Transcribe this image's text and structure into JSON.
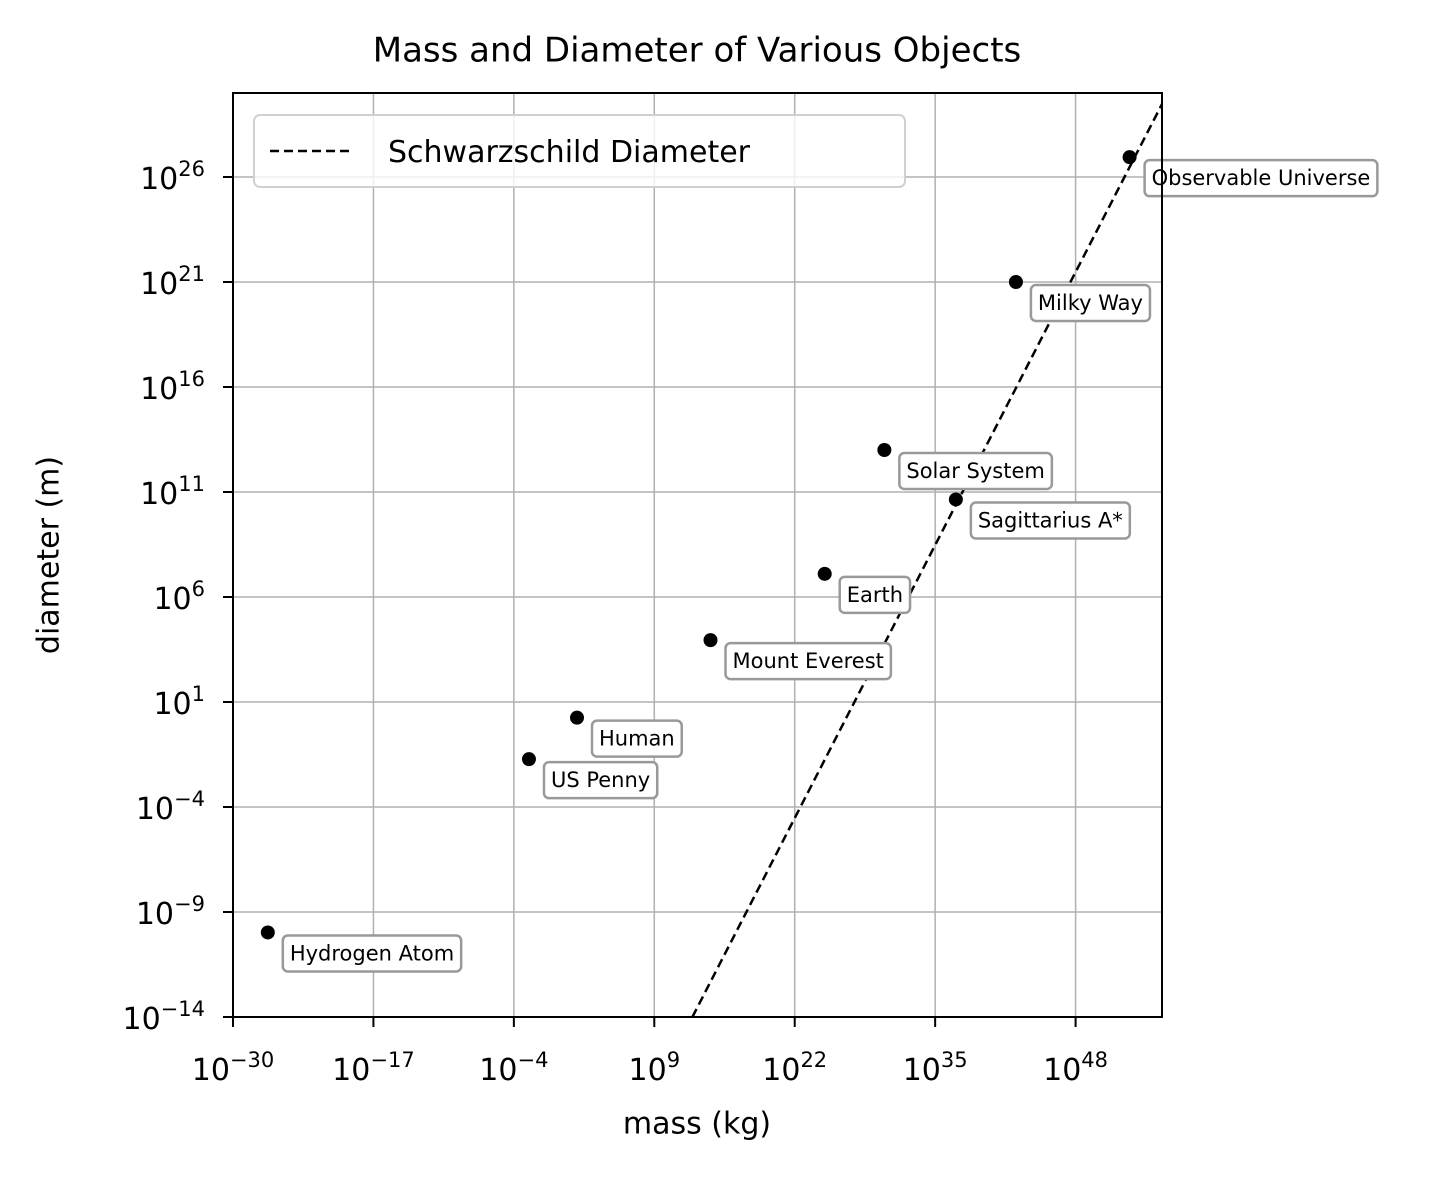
{
  "chart_data": {
    "type": "scatter",
    "title": "Mass and Diameter of Various Objects",
    "x_label": "mass (kg)",
    "y_label": "diameter (m)",
    "log_x": true,
    "log_y": true,
    "grid": true,
    "legend_position": "upper left",
    "xlim": [
      1e-30,
      1e+56
    ],
    "ylim": [
      1e-14,
      1e+30
    ],
    "xticks": [
      {
        "value": 1e-30,
        "base": "10",
        "exponent": "−30"
      },
      {
        "value": 1e-17,
        "base": "10",
        "exponent": "−17"
      },
      {
        "value": 0.0001,
        "base": "10",
        "exponent": "−4"
      },
      {
        "value": 1000000000.0,
        "base": "10",
        "exponent": "9"
      },
      {
        "value": 1e+22,
        "base": "10",
        "exponent": "22"
      },
      {
        "value": 1e+35,
        "base": "10",
        "exponent": "35"
      },
      {
        "value": 1e+48,
        "base": "10",
        "exponent": "48"
      }
    ],
    "yticks": [
      {
        "value": 1e-14,
        "base": "10",
        "exponent": "−14"
      },
      {
        "value": 1e-09,
        "base": "10",
        "exponent": "−9"
      },
      {
        "value": 0.0001,
        "base": "10",
        "exponent": "−4"
      },
      {
        "value": 10,
        "base": "10",
        "exponent": "1"
      },
      {
        "value": 1000000.0,
        "base": "10",
        "exponent": "6"
      },
      {
        "value": 100000000000.0,
        "base": "10",
        "exponent": "11"
      },
      {
        "value": 1e+16,
        "base": "10",
        "exponent": "16"
      },
      {
        "value": 1e+21,
        "base": "10",
        "exponent": "21"
      },
      {
        "value": 1e+26,
        "base": "10",
        "exponent": "26"
      }
    ],
    "points": {
      "color": "#000000",
      "labels": [
        "Hydrogen Atom",
        "US Penny",
        "Human",
        "Mount Everest",
        "Earth",
        "Solar System",
        "Sagittarius A*",
        "Milky Way",
        "Observable Universe"
      ],
      "x": [
        1.67e-27,
        0.0025,
        70,
        160000000000000.0,
        5.97e+24,
        1.99e+30,
        8.26e+36,
        3e+42,
        1e+53
      ],
      "values": [
        1.06e-10,
        0.019,
        1.8,
        8848,
        12700000.0,
        10000000000000.0,
        44000000000.0,
        1e+21,
        8.8e+26
      ]
    },
    "lines": [
      {
        "name": "Schwarzschild Diameter",
        "color": "#000000",
        "style": "dashed",
        "x": [
          3370000000000.0,
          1e+56
        ],
        "values": [
          1e-14,
          2.97e+29
        ]
      }
    ]
  }
}
